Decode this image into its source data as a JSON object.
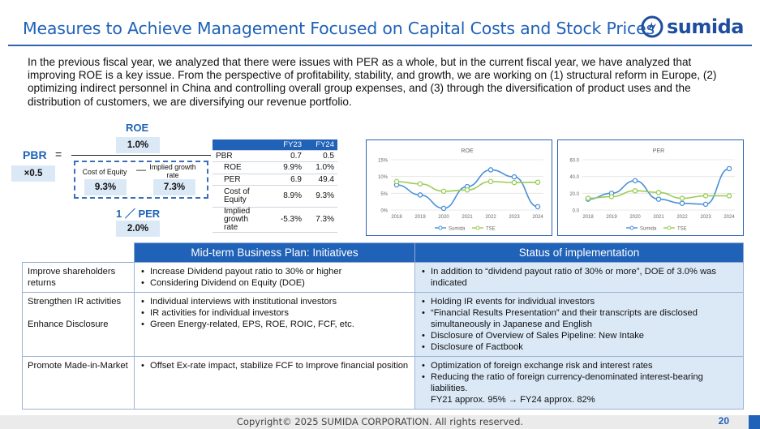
{
  "header": {
    "title": "Measures to Achieve Management Focused on Capital Costs and Stock Prices",
    "logo_text": "sumida"
  },
  "intro": "In the previous fiscal year, we analyzed that there were issues with PER as a whole, but in the current fiscal year, we have analyzed that improving ROE is a key issue. From the perspective of profitability, stability, and growth, we are working on (1) structural reform in Europe, (2) optimizing indirect personnel in China and controlling overall group expenses, and (3) through the diversification of product uses and the distribution of customers, we are diversifying our revenue portfolio.",
  "formula": {
    "pbr_label": "PBR",
    "equals": "=",
    "pbr_value": "×0.5",
    "roe_label": "ROE",
    "roe_value": "1.0%",
    "coe_label": "Cost of Equity",
    "minus": "—",
    "growth_label": "Implied growth rate",
    "coe_value": "9.3%",
    "growth_value": "7.3%",
    "per_label": "1 ／ PER",
    "per_value": "2.0%"
  },
  "mini_table": {
    "headers": [
      "",
      "FY23",
      "FY24"
    ],
    "rows": [
      {
        "label": "PBR",
        "fy23": "0.7",
        "fy24": "0.5"
      },
      {
        "label": "ROE",
        "fy23": "9.9%",
        "fy24": "1.0%"
      },
      {
        "label": "PER",
        "fy23": "6.9",
        "fy24": "49.4"
      },
      {
        "label": "Cost of Equity",
        "fy23": "8.9%",
        "fy24": "9.3%"
      },
      {
        "label": "Implied growth rate",
        "fy23": "-5.3%",
        "fy24": "7.3%"
      }
    ]
  },
  "chart_data": [
    {
      "type": "line",
      "title": "ROE",
      "x": [
        "2018",
        "2019",
        "2020",
        "2021",
        "2022",
        "2023",
        "2024"
      ],
      "ylim": [
        0,
        15
      ],
      "yticks": [
        "0%",
        "5%",
        "10%",
        "15%"
      ],
      "series": [
        {
          "name": "Sumida",
          "values": [
            7.5,
            4.5,
            0.5,
            7.0,
            12.0,
            9.9,
            1.0
          ]
        },
        {
          "name": "TSE",
          "values": [
            8.5,
            7.8,
            5.6,
            6.0,
            8.5,
            8.2,
            8.3
          ]
        }
      ],
      "colors": {
        "Sumida": "#4a90d9",
        "TSE": "#9acd54"
      },
      "legend": "bottom",
      "grid": true
    },
    {
      "type": "line",
      "title": "PER",
      "x": [
        "2018",
        "2019",
        "2020",
        "2021",
        "2022",
        "2023",
        "2024"
      ],
      "ylim": [
        0,
        60
      ],
      "yticks": [
        "0.0",
        "20.0",
        "40.0",
        "60.0"
      ],
      "series": [
        {
          "name": "Sumida",
          "values": [
            13.0,
            20.0,
            35.0,
            13.0,
            8.0,
            6.9,
            49.4
          ]
        },
        {
          "name": "TSE",
          "values": [
            14.0,
            16.0,
            23.0,
            21.0,
            14.0,
            17.0,
            17.0
          ]
        }
      ],
      "colors": {
        "Sumida": "#4a90d9",
        "TSE": "#9acd54"
      },
      "legend": "bottom",
      "grid": true
    }
  ],
  "main_table": {
    "headers": [
      "",
      "Mid-term Business Plan: Initiatives",
      "Status of implementation"
    ],
    "rows": [
      {
        "label_lines": [
          "Improve shareholders returns"
        ],
        "initiatives": [
          "Increase Dividend payout ratio to 30% or higher",
          "Considering Dividend on Equity (DOE)"
        ],
        "status": [
          "In addition to “dividend payout ratio of 30% or more”, DOE of 3.0% was indicated"
        ]
      },
      {
        "label_lines": [
          "Strengthen IR activities",
          "Enhance Disclosure"
        ],
        "initiatives": [
          "Individual interviews with institutional investors",
          "IR activities for individual investors",
          "Green Energy-related, EPS, ROE, ROIC, FCF, etc."
        ],
        "status": [
          "Holding IR events for individual investors",
          "“Financial Results Presentation” and their transcripts are disclosed simultaneously in Japanese and English",
          "Disclosure of Overview of Sales Pipeline: New Intake",
          "Disclosure of Factbook"
        ]
      },
      {
        "label_lines": [
          "Promote Made-in-Market"
        ],
        "initiatives": [
          "Offset Ex-rate impact, stabilize FCF to Improve financial position"
        ],
        "status": [
          "Optimization of foreign exchange risk and interest rates",
          "Reducing the ratio of foreign currency-denominated interest-bearing liabilities.",
          "FY21 approx. 95% → FY24 approx. 82%"
        ]
      }
    ]
  },
  "footer": {
    "copyright": "Copyright© 2025 SUMIDA CORPORATION. All rights reserved.",
    "page_number": "20"
  }
}
